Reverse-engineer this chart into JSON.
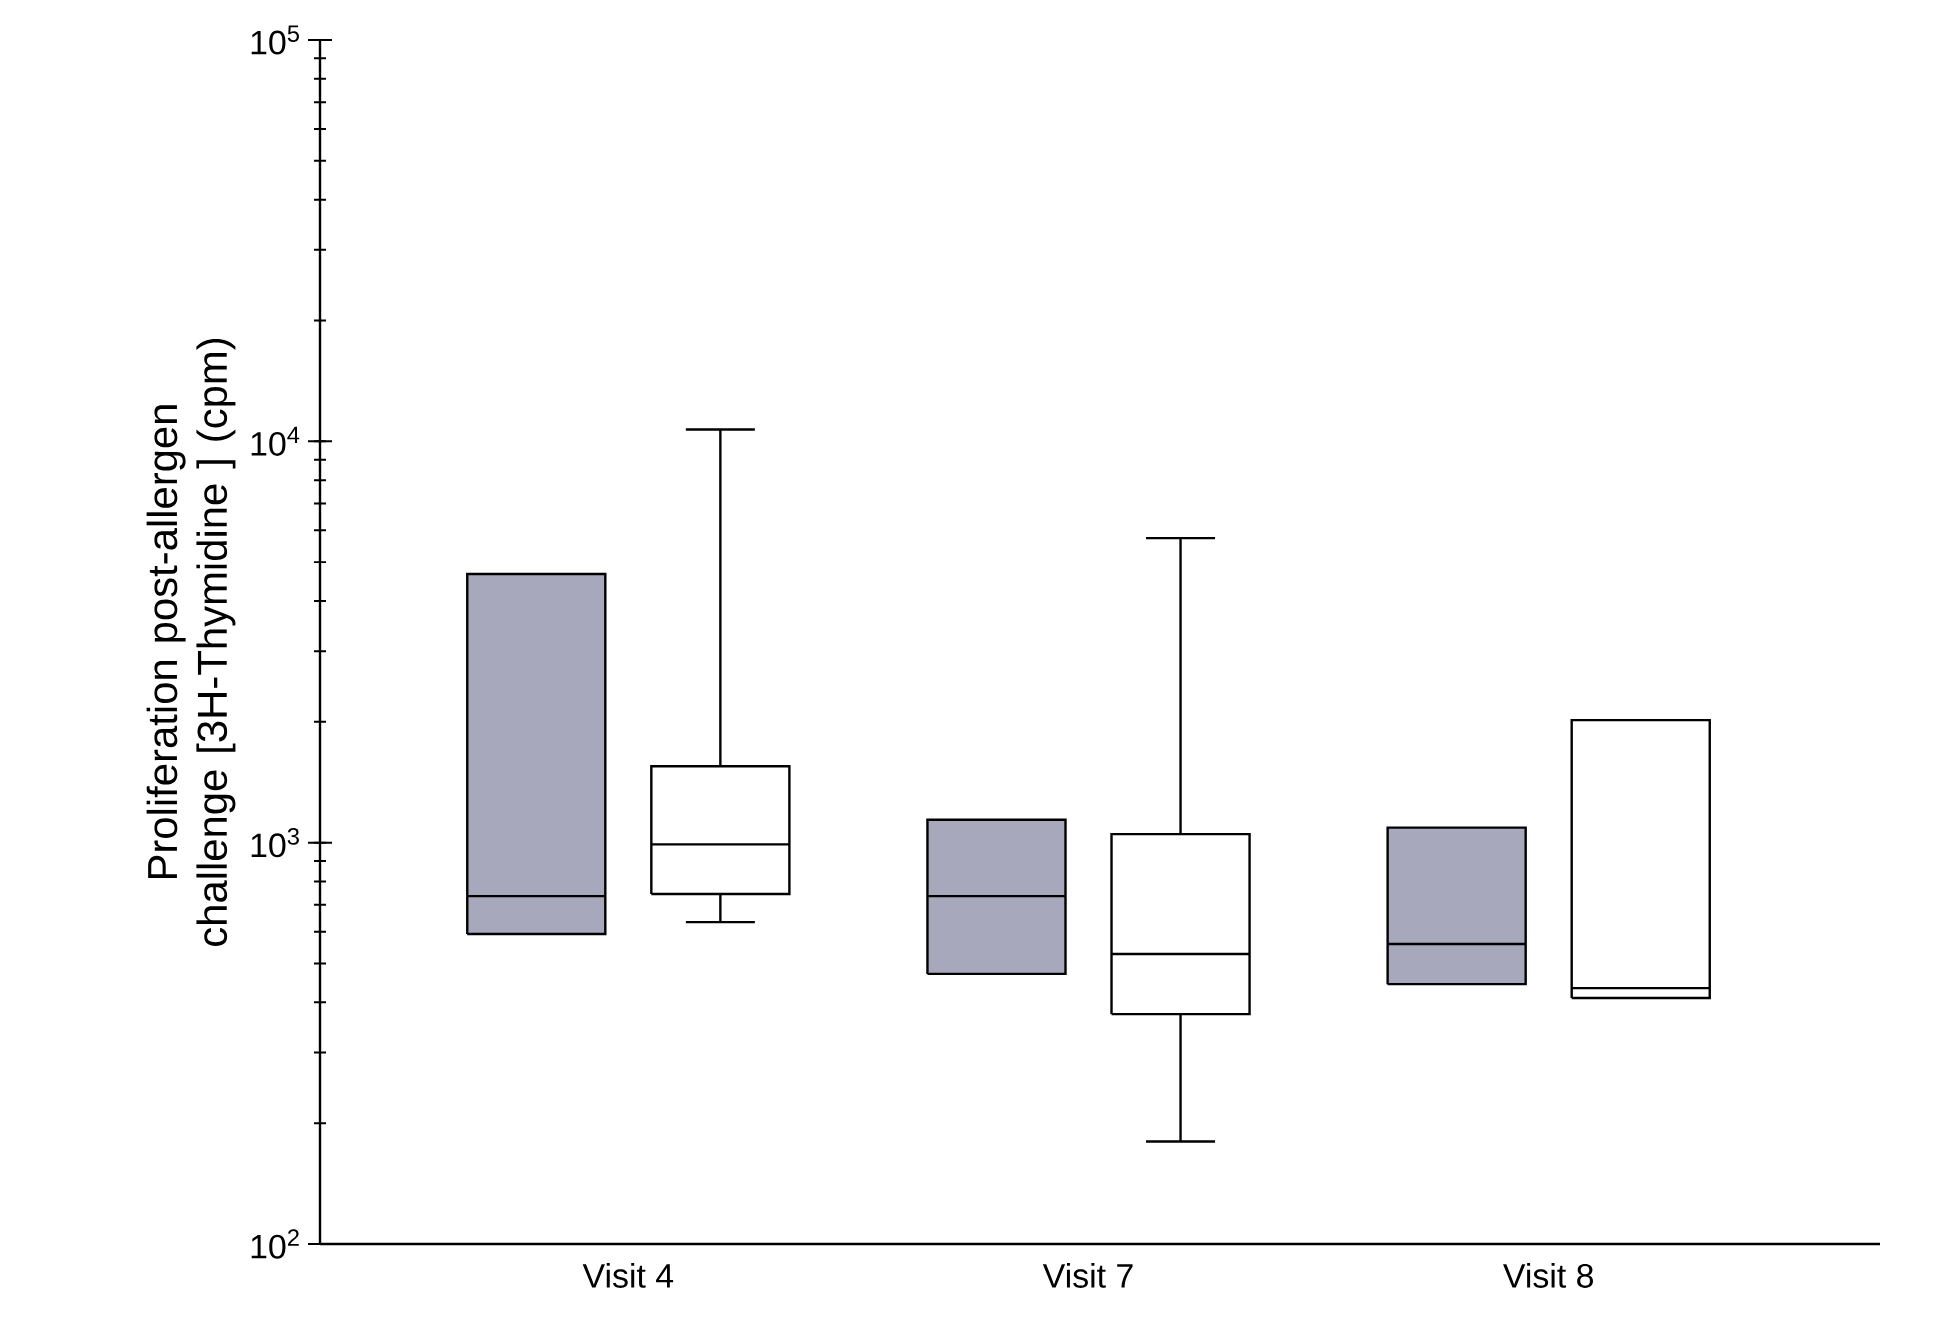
{
  "chart_data": {
    "type": "box",
    "ylabel": "Proliferation post-allergen challenge [3H-Thymidine ] (cpm)",
    "categories": [
      "Visit 4",
      "Visit 7",
      "Visit 8"
    ],
    "log": "y",
    "ylim": [
      100,
      100000
    ],
    "yticks": [
      {
        "value": 100,
        "label": "10$^{2}$"
      },
      {
        "value": 1000,
        "label": "10$^{3}$"
      },
      {
        "value": 10000,
        "label": "10$^{4}$"
      },
      {
        "value": 100000,
        "label": "10$^{5}$"
      }
    ],
    "grid": false,
    "series": [
      {
        "color": "#a8a8bc",
        "boxes": [
          {
            "low": 592,
            "q1": 592,
            "median": 736,
            "q3": 4670,
            "high": 4670
          },
          {
            "low": 471,
            "q1": 471,
            "median": 736,
            "q3": 1140,
            "high": 1140
          },
          {
            "low": 444,
            "q1": 444,
            "median": 559,
            "q3": 1090,
            "high": 1090
          }
        ]
      },
      {
        "color": "#ffffff",
        "boxes": [
          {
            "low": 634,
            "q1": 745,
            "median": 990,
            "q3": 1550,
            "high": 10700
          },
          {
            "low": 180,
            "q1": 374,
            "median": 528,
            "q3": 1050,
            "high": 5740
          },
          {
            "low": 410,
            "q1": 410,
            "median": 434,
            "q3": 2020,
            "high": 2020
          }
        ]
      }
    ]
  }
}
